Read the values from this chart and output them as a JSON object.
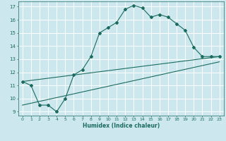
{
  "xlabel": "Humidex (Indice chaleur)",
  "bg_color": "#cce8ee",
  "grid_color": "#ffffff",
  "line_color": "#1a6b5e",
  "xlim": [
    -0.5,
    23.5
  ],
  "ylim": [
    8.7,
    17.4
  ],
  "xticks": [
    0,
    1,
    2,
    3,
    4,
    5,
    6,
    7,
    8,
    9,
    10,
    11,
    12,
    13,
    14,
    15,
    16,
    17,
    18,
    19,
    20,
    21,
    22,
    23
  ],
  "yticks": [
    9,
    10,
    11,
    12,
    13,
    14,
    15,
    16,
    17
  ],
  "line1_x": [
    0,
    1,
    2,
    3,
    4,
    5,
    6,
    7,
    8,
    9,
    10,
    11,
    12,
    13,
    14,
    15,
    16,
    17,
    18,
    19,
    20,
    21,
    22,
    23
  ],
  "line1_y": [
    11.3,
    11.0,
    9.5,
    9.5,
    9.0,
    10.0,
    11.8,
    12.2,
    13.2,
    15.0,
    15.4,
    15.8,
    16.8,
    17.1,
    16.9,
    16.2,
    16.4,
    16.2,
    15.7,
    15.2,
    13.9,
    13.2,
    13.2,
    13.2
  ],
  "line2_x": [
    0,
    23
  ],
  "line2_y": [
    11.3,
    13.2
  ],
  "line3_x": [
    0,
    23
  ],
  "line3_y": [
    9.5,
    12.8
  ]
}
